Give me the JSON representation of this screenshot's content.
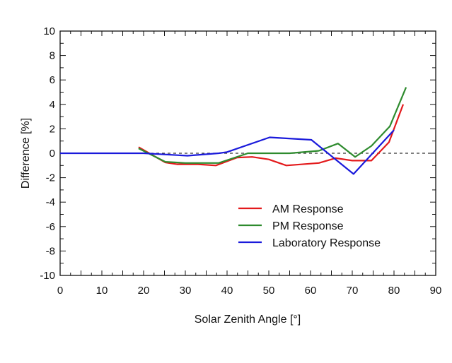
{
  "chart_data": {
    "type": "line",
    "title": "",
    "xlabel": "Solar Zenith Angle [°]",
    "ylabel": "Difference [%]",
    "xlim": [
      0,
      90
    ],
    "ylim": [
      -10,
      10
    ],
    "xticks": [
      0,
      10,
      20,
      30,
      40,
      50,
      60,
      70,
      80,
      90
    ],
    "yticks": [
      10,
      8,
      6,
      4,
      2,
      0,
      -2,
      -4,
      -6,
      -8,
      -10
    ],
    "xtick_labels": [
      "0",
      "10",
      "20",
      "30",
      "40",
      "50",
      "60",
      "70",
      "80",
      "90"
    ],
    "ytick_labels": [
      "10",
      "8",
      "6",
      "4",
      "2",
      "0",
      "-2",
      "-4",
      "-6",
      "-8",
      "-10"
    ],
    "grid": false,
    "reference_line": {
      "y": 0,
      "style": "dashed",
      "color": "#333333"
    },
    "legend": {
      "placement": "bottom-right"
    },
    "series": [
      {
        "name": "AM Response",
        "color": "#e31a1c",
        "x": [
          18.8,
          25.2,
          28.0,
          33.0,
          37.3,
          42.4,
          46.0,
          50.0,
          54.2,
          62.0,
          66.0,
          70.0,
          74.6,
          78.8,
          82.2
        ],
        "y": [
          0.5,
          -0.75,
          -0.9,
          -0.9,
          -1.0,
          -0.35,
          -0.3,
          -0.5,
          -1.0,
          -0.8,
          -0.4,
          -0.6,
          -0.6,
          0.9,
          4.0
        ]
      },
      {
        "name": "PM Response",
        "color": "#2e8b2e",
        "x": [
          18.8,
          25.2,
          30.0,
          38.0,
          45.0,
          50.0,
          55.0,
          62.0,
          66.6,
          70.7,
          74.6,
          79.0,
          82.9
        ],
        "y": [
          0.4,
          -0.7,
          -0.8,
          -0.8,
          0.0,
          0.0,
          0.0,
          0.2,
          0.8,
          -0.3,
          0.6,
          2.2,
          5.4
        ]
      },
      {
        "name": "Laboratory Response",
        "color": "#1a1adb",
        "x": [
          0,
          20.0,
          30.5,
          38.0,
          40.0,
          50.2,
          60.2,
          70.3,
          80.0
        ],
        "y": [
          0,
          0,
          -0.2,
          0.0,
          0.1,
          1.3,
          1.1,
          -1.7,
          1.9
        ]
      }
    ]
  }
}
